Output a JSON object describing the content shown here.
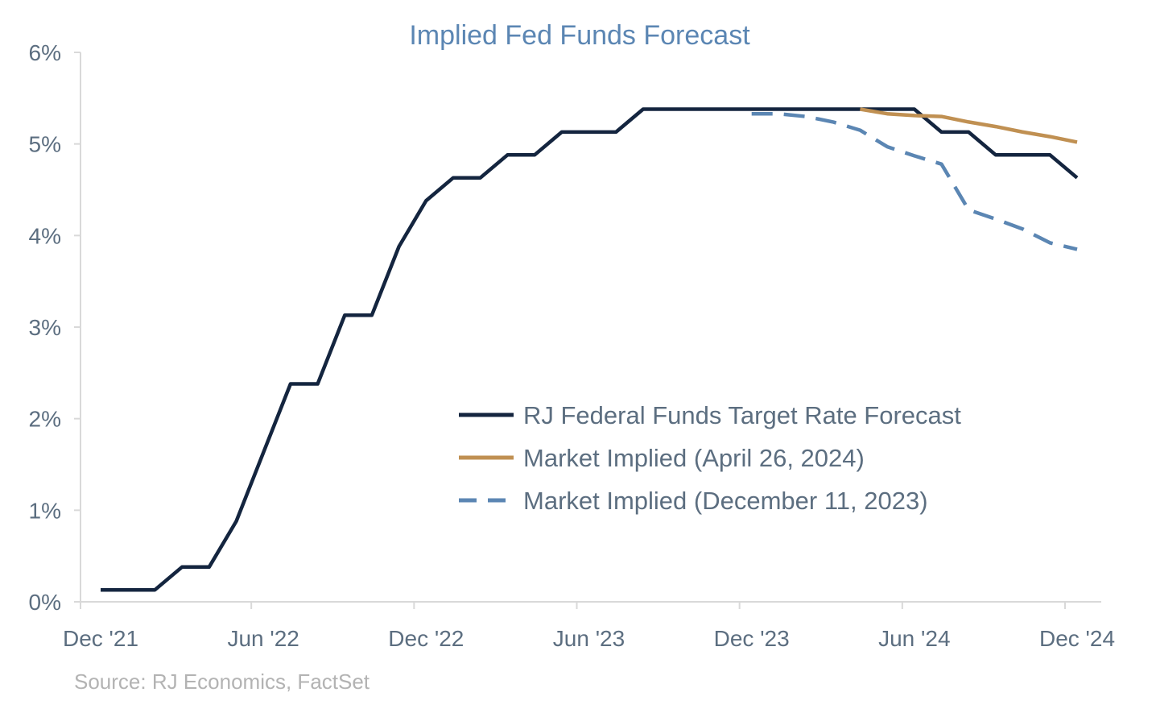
{
  "chart_data": {
    "type": "line",
    "title": "Implied Fed Funds Forecast",
    "xlabel": "",
    "ylabel": "",
    "ylim": [
      0,
      6
    ],
    "yticks": [
      {
        "value": 0,
        "label": "0%"
      },
      {
        "value": 1,
        "label": "1%"
      },
      {
        "value": 2,
        "label": "2%"
      },
      {
        "value": 3,
        "label": "3%"
      },
      {
        "value": 4,
        "label": "4%"
      },
      {
        "value": 5,
        "label": "5%"
      },
      {
        "value": 6,
        "label": "6%"
      }
    ],
    "xrange": [
      "2021-12-01",
      "2024-12-01"
    ],
    "xticks": [
      {
        "value": "2021-12-01",
        "label": "Dec '21"
      },
      {
        "value": "2022-06-01",
        "label": "Jun '22"
      },
      {
        "value": "2022-12-01",
        "label": "Dec '22"
      },
      {
        "value": "2023-06-01",
        "label": "Jun '23"
      },
      {
        "value": "2023-12-01",
        "label": "Dec '23"
      },
      {
        "value": "2024-06-01",
        "label": "Jun '24"
      },
      {
        "value": "2024-12-01",
        "label": "Dec '24"
      }
    ],
    "grid": false,
    "legend": "center-right",
    "series": [
      {
        "name": "RJ Federal Funds Target Rate Forecast",
        "color": "#14253f",
        "dash": "solid",
        "points": [
          [
            "2021-12-01",
            0.13
          ],
          [
            "2022-01-01",
            0.13
          ],
          [
            "2022-02-01",
            0.13
          ],
          [
            "2022-03-01",
            0.38
          ],
          [
            "2022-04-01",
            0.38
          ],
          [
            "2022-05-01",
            0.88
          ],
          [
            "2022-06-01",
            1.63
          ],
          [
            "2022-07-01",
            2.38
          ],
          [
            "2022-08-01",
            2.38
          ],
          [
            "2022-09-01",
            3.13
          ],
          [
            "2022-10-01",
            3.13
          ],
          [
            "2022-11-01",
            3.88
          ],
          [
            "2022-12-01",
            4.38
          ],
          [
            "2023-01-01",
            4.63
          ],
          [
            "2023-02-01",
            4.63
          ],
          [
            "2023-03-01",
            4.88
          ],
          [
            "2023-04-01",
            4.88
          ],
          [
            "2023-05-01",
            5.13
          ],
          [
            "2023-06-01",
            5.13
          ],
          [
            "2023-07-01",
            5.13
          ],
          [
            "2023-08-01",
            5.38
          ],
          [
            "2023-09-01",
            5.38
          ],
          [
            "2023-10-01",
            5.38
          ],
          [
            "2023-11-01",
            5.38
          ],
          [
            "2023-12-01",
            5.38
          ],
          [
            "2024-01-01",
            5.38
          ],
          [
            "2024-02-01",
            5.38
          ],
          [
            "2024-03-01",
            5.38
          ],
          [
            "2024-04-01",
            5.38
          ],
          [
            "2024-05-01",
            5.38
          ],
          [
            "2024-06-01",
            5.38
          ],
          [
            "2024-07-01",
            5.13
          ],
          [
            "2024-08-01",
            5.13
          ],
          [
            "2024-09-01",
            4.88
          ],
          [
            "2024-10-01",
            4.88
          ],
          [
            "2024-11-01",
            4.88
          ],
          [
            "2024-12-01",
            4.63
          ]
        ]
      },
      {
        "name": "Market Implied (April 26, 2024)",
        "color": "#c09052",
        "dash": "solid",
        "points": [
          [
            "2024-04-01",
            5.38
          ],
          [
            "2024-05-01",
            5.33
          ],
          [
            "2024-06-01",
            5.31
          ],
          [
            "2024-07-01",
            5.3
          ],
          [
            "2024-08-01",
            5.24
          ],
          [
            "2024-09-01",
            5.19
          ],
          [
            "2024-10-01",
            5.13
          ],
          [
            "2024-11-01",
            5.08
          ],
          [
            "2024-12-01",
            5.02
          ]
        ]
      },
      {
        "name": "Market Implied (December 11, 2023)",
        "color": "#5b86b3",
        "dash": "dashed",
        "points": [
          [
            "2023-12-01",
            5.33
          ],
          [
            "2024-01-01",
            5.33
          ],
          [
            "2024-02-01",
            5.3
          ],
          [
            "2024-03-01",
            5.24
          ],
          [
            "2024-04-01",
            5.15
          ],
          [
            "2024-05-01",
            4.97
          ],
          [
            "2024-06-01",
            4.87
          ],
          [
            "2024-07-01",
            4.78
          ],
          [
            "2024-08-01",
            4.28
          ],
          [
            "2024-09-01",
            4.18
          ],
          [
            "2024-10-01",
            4.07
          ],
          [
            "2024-11-01",
            3.92
          ],
          [
            "2024-12-01",
            3.85
          ]
        ]
      }
    ],
    "annotations": []
  },
  "source": "Source: RJ Economics, FactSet",
  "colors": {
    "title": "#5b86b3",
    "axis_text": "#5c6e80",
    "axis_line": "#d9d9d9",
    "source_text": "#b3b3b3"
  }
}
